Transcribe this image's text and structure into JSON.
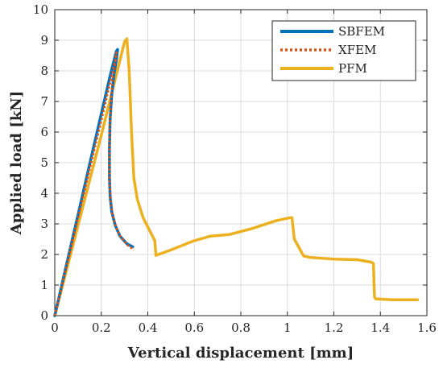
{
  "chart_data": {
    "type": "line",
    "title": "",
    "xlabel": "Vertical displacement [mm]",
    "ylabel": "Applied load [kN]",
    "xlim": [
      0,
      1.6
    ],
    "ylim": [
      0,
      10
    ],
    "xticks": [
      0,
      0.2,
      0.4,
      0.6,
      0.8,
      1,
      1.2,
      1.4,
      1.6
    ],
    "xtick_labels": [
      "0",
      "0.2",
      "0.4",
      "0.6",
      "0.8",
      "1",
      "1.2",
      "1.4",
      "1.6"
    ],
    "yticks": [
      0,
      1,
      2,
      3,
      4,
      5,
      6,
      7,
      8,
      9,
      10
    ],
    "ytick_labels": [
      "0",
      "1",
      "2",
      "3",
      "4",
      "5",
      "6",
      "7",
      "8",
      "9",
      "10"
    ],
    "grid": true,
    "legend_position": "top-right",
    "series": [
      {
        "name": "SBFEM",
        "color": "#0072BD",
        "style": "solid",
        "x": [
          0,
          0.05,
          0.1,
          0.15,
          0.2,
          0.24,
          0.265,
          0.27,
          0.265,
          0.255,
          0.245,
          0.238,
          0.235,
          0.235,
          0.238,
          0.245,
          0.26,
          0.28,
          0.31,
          0.335
        ],
        "y": [
          0,
          1.65,
          3.3,
          4.95,
          6.6,
          7.9,
          8.65,
          8.7,
          8.35,
          7.9,
          7.2,
          6.4,
          5.5,
          4.5,
          3.9,
          3.4,
          2.95,
          2.6,
          2.35,
          2.25
        ]
      },
      {
        "name": "XFEM",
        "color": "#D95319",
        "style": "dotted",
        "x": [
          0,
          0.05,
          0.1,
          0.15,
          0.2,
          0.24,
          0.26,
          0.265,
          0.26,
          0.25,
          0.243,
          0.237,
          0.235,
          0.236,
          0.24,
          0.248,
          0.263,
          0.285,
          0.315,
          0.34
        ],
        "y": [
          0,
          1.6,
          3.2,
          4.8,
          6.4,
          7.7,
          8.35,
          8.6,
          8.3,
          7.8,
          7.1,
          6.3,
          5.4,
          4.4,
          3.8,
          3.3,
          2.9,
          2.55,
          2.3,
          2.15
        ]
      },
      {
        "name": "PFM",
        "color": "#EDB120",
        "style": "solid",
        "x": [
          0,
          0.1,
          0.2,
          0.3,
          0.31,
          0.32,
          0.33,
          0.34,
          0.355,
          0.38,
          0.4,
          0.42,
          0.43,
          0.435,
          0.5,
          0.6,
          0.67,
          0.75,
          0.85,
          0.95,
          1.01,
          1.02,
          1.03,
          1.07,
          1.1,
          1.2,
          1.3,
          1.36,
          1.37,
          1.375,
          1.38,
          1.45,
          1.56
        ],
        "y": [
          0,
          2.95,
          5.9,
          8.95,
          9.05,
          8.0,
          6.0,
          4.5,
          3.8,
          3.2,
          2.9,
          2.6,
          2.45,
          1.97,
          2.15,
          2.45,
          2.6,
          2.65,
          2.85,
          3.1,
          3.2,
          3.2,
          2.5,
          1.95,
          1.9,
          1.85,
          1.83,
          1.75,
          1.7,
          0.6,
          0.55,
          0.52,
          0.52
        ]
      }
    ]
  }
}
